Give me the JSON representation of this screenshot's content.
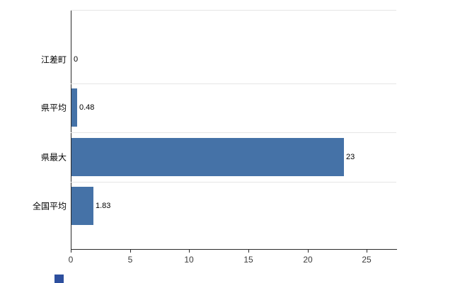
{
  "chart_data": {
    "type": "bar",
    "orientation": "horizontal",
    "title": "",
    "xlabel": "",
    "ylabel": "",
    "categories": [
      "江差町",
      "県平均",
      "県最大",
      "全国平均"
    ],
    "values": [
      0,
      0.48,
      23,
      1.83
    ],
    "value_labels": [
      "0",
      "0.48",
      "23",
      "1.83"
    ],
    "xlim": [
      0,
      27.5
    ],
    "xticks": [
      0,
      5,
      10,
      15,
      20,
      25
    ],
    "grid": true,
    "legend_position": "none",
    "bar_color": "#4572A7",
    "axis_color": "#2b2b2b",
    "grid_color": "#e6e6e6",
    "background_color": "#ffffff"
  },
  "decor": {
    "corner_marker_color": "#2d4f9e"
  }
}
